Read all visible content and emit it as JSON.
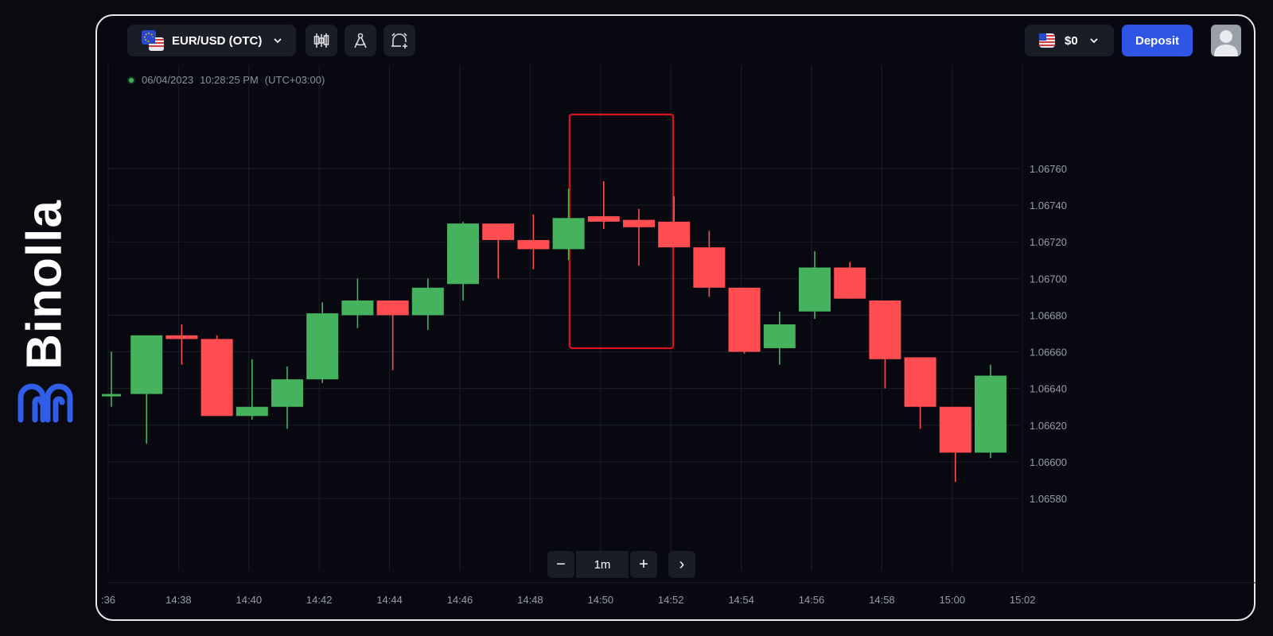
{
  "brand": {
    "name": "Binolla"
  },
  "header": {
    "asset_label": "EUR/USD (OTC)",
    "balance_label": "$0",
    "deposit_label": "Deposit"
  },
  "timestamp": {
    "date": "06/04/2023",
    "time": "10:28:25 PM",
    "timezone": "(UTC+03:00)"
  },
  "zoom": {
    "minus": "−",
    "value": "1m",
    "plus": "+",
    "next": "›"
  },
  "colors": {
    "up": "#45b35e",
    "down": "#ff4d52",
    "highlight": "#d8141c",
    "deposit": "#2f55e4"
  },
  "chart_data": {
    "type": "candlestick",
    "title": "",
    "xlabel": "",
    "ylabel": "",
    "ylim": [
      1.0656,
      1.0678
    ],
    "y_ticks": [
      "1.06580",
      "1.06600",
      "1.06620",
      "1.06640",
      "1.06660",
      "1.06680",
      "1.06700",
      "1.06720",
      "1.06740",
      "1.06760"
    ],
    "x_ticks": [
      ":36",
      "14:38",
      "14:40",
      "14:42",
      "14:44",
      "14:46",
      "14:48",
      "14:50",
      "14:52",
      "14:54",
      "14:56",
      "14:58",
      "15:00",
      "15:02"
    ],
    "grid": true,
    "highlight_range": {
      "from": "14:50",
      "to": "14:51"
    },
    "candles": [
      {
        "time": "14:36",
        "open": 1.06636,
        "high": 1.0666,
        "low": 1.0663,
        "close": 1.06637
      },
      {
        "time": "14:37",
        "open": 1.06637,
        "high": 1.06669,
        "low": 1.0661,
        "close": 1.06669
      },
      {
        "time": "14:38",
        "open": 1.06669,
        "high": 1.06675,
        "low": 1.06653,
        "close": 1.06667
      },
      {
        "time": "14:39",
        "open": 1.06667,
        "high": 1.06669,
        "low": 1.06625,
        "close": 1.06625
      },
      {
        "time": "14:40",
        "open": 1.06625,
        "high": 1.06656,
        "low": 1.06623,
        "close": 1.0663
      },
      {
        "time": "14:41",
        "open": 1.0663,
        "high": 1.06652,
        "low": 1.06618,
        "close": 1.06645
      },
      {
        "time": "14:42",
        "open": 1.06645,
        "high": 1.06687,
        "low": 1.06643,
        "close": 1.06681
      },
      {
        "time": "14:43",
        "open": 1.0668,
        "high": 1.067,
        "low": 1.06673,
        "close": 1.06688
      },
      {
        "time": "14:44",
        "open": 1.06688,
        "high": 1.06688,
        "low": 1.0665,
        "close": 1.0668
      },
      {
        "time": "14:45",
        "open": 1.0668,
        "high": 1.067,
        "low": 1.06672,
        "close": 1.06695
      },
      {
        "time": "14:46",
        "open": 1.06697,
        "high": 1.06731,
        "low": 1.06688,
        "close": 1.0673
      },
      {
        "time": "14:47",
        "open": 1.0673,
        "high": 1.0673,
        "low": 1.067,
        "close": 1.06721
      },
      {
        "time": "14:48",
        "open": 1.06721,
        "high": 1.06735,
        "low": 1.06705,
        "close": 1.06716
      },
      {
        "time": "14:49",
        "open": 1.06716,
        "high": 1.06749,
        "low": 1.0671,
        "close": 1.06733
      },
      {
        "time": "14:50",
        "open": 1.06734,
        "high": 1.06753,
        "low": 1.06727,
        "close": 1.06731
      },
      {
        "time": "14:51",
        "open": 1.06732,
        "high": 1.06738,
        "low": 1.06707,
        "close": 1.06728
      },
      {
        "time": "14:52",
        "open": 1.06731,
        "high": 1.06745,
        "low": 1.06717,
        "close": 1.06717
      },
      {
        "time": "14:53",
        "open": 1.06717,
        "high": 1.06726,
        "low": 1.0669,
        "close": 1.06695
      },
      {
        "time": "14:54",
        "open": 1.06695,
        "high": 1.06695,
        "low": 1.06659,
        "close": 1.0666
      },
      {
        "time": "14:55",
        "open": 1.06662,
        "high": 1.06682,
        "low": 1.06653,
        "close": 1.06675
      },
      {
        "time": "14:56",
        "open": 1.06682,
        "high": 1.06715,
        "low": 1.06678,
        "close": 1.06706
      },
      {
        "time": "14:57",
        "open": 1.06706,
        "high": 1.06709,
        "low": 1.06689,
        "close": 1.06689
      },
      {
        "time": "14:58",
        "open": 1.06688,
        "high": 1.06688,
        "low": 1.0664,
        "close": 1.06656
      },
      {
        "time": "14:59",
        "open": 1.06657,
        "high": 1.06657,
        "low": 1.06618,
        "close": 1.0663
      },
      {
        "time": "15:00",
        "open": 1.0663,
        "high": 1.0663,
        "low": 1.06589,
        "close": 1.06605
      },
      {
        "time": "15:01",
        "open": 1.06605,
        "high": 1.06653,
        "low": 1.06602,
        "close": 1.06647
      }
    ]
  }
}
